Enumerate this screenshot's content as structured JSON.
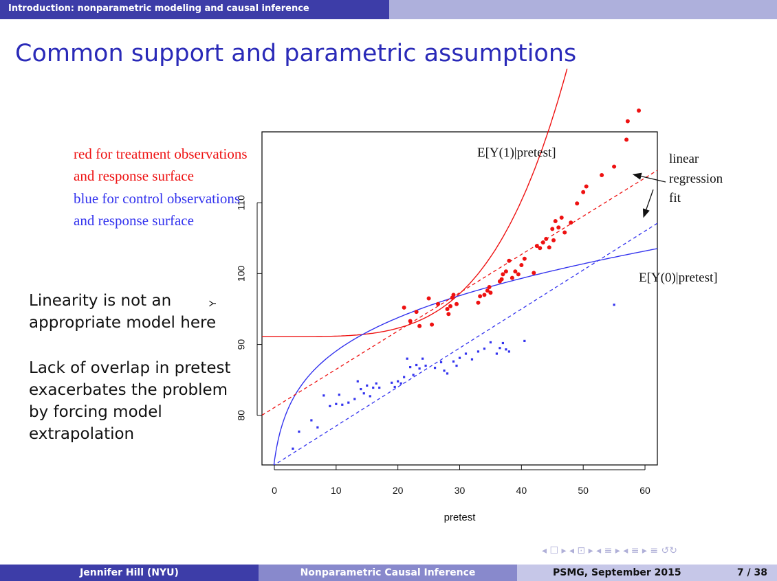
{
  "header": {
    "section": "Introduction: nonparametric modeling and causal inference"
  },
  "slide": {
    "title": "Common support and parametric assumptions",
    "note1": "Linearity is not an appropriate model here",
    "note2": "Lack of overlap in pretest exacerbates the problem by forcing model extrapolation"
  },
  "chart_data": {
    "type": "scatter",
    "xlabel": "pretest",
    "ylabel": "Y",
    "xlim": [
      -2,
      62
    ],
    "ylim": [
      73,
      120
    ],
    "x_ticks": [
      0,
      10,
      20,
      30,
      40,
      50,
      60
    ],
    "y_ticks": [
      80,
      90,
      100,
      110
    ],
    "annotations": {
      "red_legend_1": "red for treatment observations",
      "red_legend_2": "and response surface",
      "blue_legend_1": "blue for control observations",
      "blue_legend_2": "and response surface",
      "ey1": "E[Y(1)|pretest]",
      "ey0": "E[Y(0)|pretest]",
      "linreg_1": "linear",
      "linreg_2": "regression",
      "linreg_3": "fit"
    },
    "colors": {
      "treatment": "#ee1111",
      "control": "#3333ee"
    },
    "series": [
      {
        "name": "treatment observations",
        "points": [
          [
            21,
            95.2
          ],
          [
            22,
            93.3
          ],
          [
            23,
            94.6
          ],
          [
            23.5,
            92.6
          ],
          [
            25,
            96.5
          ],
          [
            25.5,
            92.8
          ],
          [
            26.5,
            95.7
          ],
          [
            28,
            95
          ],
          [
            28.2,
            94.3
          ],
          [
            28.5,
            95.4
          ],
          [
            28.8,
            96.6
          ],
          [
            29,
            97
          ],
          [
            29.5,
            95.7
          ],
          [
            33,
            95.9
          ],
          [
            33.3,
            96.8
          ],
          [
            34,
            97
          ],
          [
            34.5,
            97.6
          ],
          [
            34.8,
            98.1
          ],
          [
            35,
            97.3
          ],
          [
            36.5,
            98.9
          ],
          [
            36.8,
            99.2
          ],
          [
            37,
            99.9
          ],
          [
            37.5,
            100.3
          ],
          [
            38,
            101.8
          ],
          [
            38.5,
            99.4
          ],
          [
            39,
            100.3
          ],
          [
            39.5,
            99.9
          ],
          [
            40,
            101.2
          ],
          [
            40.5,
            102.1
          ],
          [
            42,
            100.1
          ],
          [
            42.5,
            103.9
          ],
          [
            43,
            103.6
          ],
          [
            43.5,
            104.4
          ],
          [
            44,
            104.9
          ],
          [
            44.5,
            103.7
          ],
          [
            45,
            106.3
          ],
          [
            45.2,
            104.7
          ],
          [
            45.5,
            107.4
          ],
          [
            46,
            106.5
          ],
          [
            46.5,
            107.9
          ],
          [
            47,
            105.8
          ],
          [
            48,
            107.2
          ],
          [
            49,
            109.9
          ],
          [
            50,
            111.5
          ],
          [
            50.5,
            112.3
          ],
          [
            53,
            113.9
          ],
          [
            55,
            115.1
          ],
          [
            57,
            118.9
          ],
          [
            57.2,
            121.5
          ],
          [
            59,
            123
          ]
        ]
      },
      {
        "name": "control observations",
        "points": [
          [
            3,
            75.3
          ],
          [
            4,
            77.7
          ],
          [
            6,
            79.3
          ],
          [
            7,
            78.3
          ],
          [
            8,
            82.8
          ],
          [
            9,
            81.3
          ],
          [
            10,
            81.6
          ],
          [
            10.5,
            82.9
          ],
          [
            11,
            81.5
          ],
          [
            12,
            81.8
          ],
          [
            13,
            82.3
          ],
          [
            13.5,
            84.8
          ],
          [
            14,
            83.7
          ],
          [
            14.5,
            83.1
          ],
          [
            15,
            84.2
          ],
          [
            15.5,
            82.7
          ],
          [
            16,
            83.9
          ],
          [
            16.5,
            84.5
          ],
          [
            17,
            83.9
          ],
          [
            19,
            84.6
          ],
          [
            19.5,
            84
          ],
          [
            20,
            84.8
          ],
          [
            20.5,
            84.5
          ],
          [
            21,
            85.4
          ],
          [
            21.5,
            88
          ],
          [
            22,
            86.8
          ],
          [
            22.5,
            85.7
          ],
          [
            23,
            87.1
          ],
          [
            23.5,
            86.6
          ],
          [
            24,
            88
          ],
          [
            24.5,
            87
          ],
          [
            26,
            86.7
          ],
          [
            27,
            87.5
          ],
          [
            27.5,
            86.3
          ],
          [
            28,
            85.9
          ],
          [
            29,
            87.6
          ],
          [
            29.5,
            87
          ],
          [
            30,
            88.1
          ],
          [
            31,
            88.7
          ],
          [
            32,
            87.9
          ],
          [
            33,
            89
          ],
          [
            34,
            89.4
          ],
          [
            35,
            90.3
          ],
          [
            36,
            88.7
          ],
          [
            36.5,
            89.5
          ],
          [
            37,
            90.2
          ],
          [
            37.5,
            89.3
          ],
          [
            38,
            89
          ],
          [
            40.5,
            90.5
          ],
          [
            55,
            95.6
          ]
        ]
      }
    ],
    "curves": [
      {
        "name": "E[Y(1)|pretest]",
        "style": "solid",
        "color": "#ee1111",
        "formula": "91.1 + 0.0000075*x^4"
      },
      {
        "name": "E[Y(0)|pretest]",
        "style": "solid",
        "color": "#3333ee",
        "formula": "73.5 + 6.2*ln(x+1) + 0.07*x"
      },
      {
        "name": "linear regression fit (treatment)",
        "style": "dashed",
        "color": "#ee1111",
        "line": [
          81.1,
          0.54
        ]
      },
      {
        "name": "linear regression fit (control)",
        "style": "dashed",
        "color": "#3333ee",
        "line": [
          73,
          0.55
        ]
      }
    ]
  },
  "footer": {
    "author": "Jennifer Hill  (NYU)",
    "short_title": "Nonparametric Causal Inference",
    "conference": "PSMG, September 2015",
    "page": "7 / 38",
    "nav_symbols": "◂ ☐ ▸  ◂ ⊡ ▸  ◂ ≡ ▸  ◂ ≡ ▸    ≡    ↺↻"
  }
}
